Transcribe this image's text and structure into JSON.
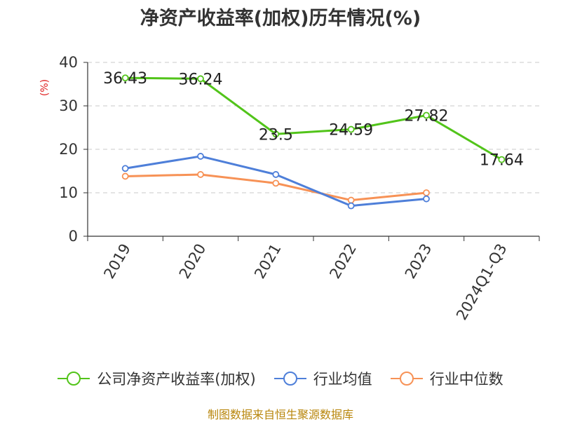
{
  "title": "净资产收益率(加权)历年情况(%)",
  "footer": "制图数据来自恒生聚源数据库",
  "chart_data": {
    "type": "line",
    "title": "净资产收益率(加权)历年情况(%)",
    "ylabel": "(%)",
    "xlabel": "",
    "categories": [
      "2019",
      "2020",
      "2021",
      "2022",
      "2023",
      "2024Q1-Q3"
    ],
    "ylim": [
      0,
      40
    ],
    "yticks": [
      0,
      10,
      20,
      30,
      40
    ],
    "grid": true,
    "legend_position": "bottom",
    "series": [
      {
        "name": "公司净资产收益率(加权)",
        "color": "#52c41a",
        "values": [
          36.43,
          36.24,
          23.5,
          24.59,
          27.82,
          17.64
        ],
        "labels": [
          "36.43",
          "36.24",
          "23.5",
          "24.59",
          "27.82",
          "17.64"
        ]
      },
      {
        "name": "行业均值",
        "color": "#4e7fd9",
        "values": [
          15.6,
          18.4,
          14.2,
          7.0,
          8.6,
          null
        ]
      },
      {
        "name": "行业中位数",
        "color": "#f79256",
        "values": [
          13.8,
          14.2,
          12.2,
          8.3,
          10.0,
          null
        ]
      }
    ]
  }
}
